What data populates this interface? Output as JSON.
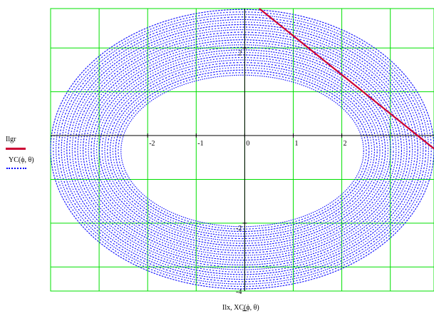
{
  "chart_data": {
    "type": "scatter",
    "xlabel": "Ilx, XC(ϕ, θ)",
    "ylabel": "",
    "xlim": [
      -4.0,
      3.9
    ],
    "ylim": [
      -3.55,
      2.9
    ],
    "grid": true,
    "grid_color": "#00e000",
    "legend_placement": "left",
    "x_ticks": [
      -2,
      -1,
      0,
      1,
      2
    ],
    "y_ticks": [
      2,
      -2,
      -4
    ],
    "series": [
      {
        "name": "Ilgr",
        "style": "solid",
        "color": "#cc0033",
        "x": [
          0.3,
          3.9
        ],
        "y": [
          2.9,
          -0.3
        ]
      },
      {
        "name": "YC(ϕ, θ)",
        "style": "dotted",
        "color": "#0000ff",
        "shape": "elliptical ring (torus projection)",
        "outer_x_range": [
          -4.0,
          3.9
        ],
        "outer_y_range": [
          -3.5,
          2.88
        ],
        "inner_x_range": [
          -2.55,
          2.45
        ],
        "inner_y_range": [
          -2.08,
          1.38
        ]
      }
    ]
  }
}
